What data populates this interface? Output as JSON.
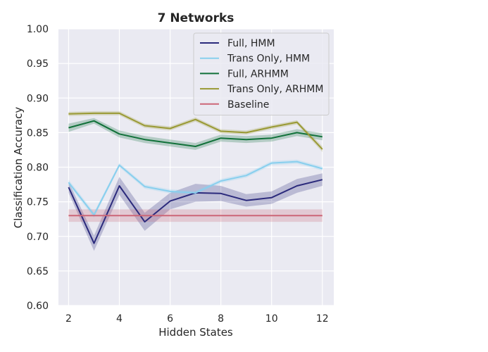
{
  "chart_data": {
    "type": "line",
    "title": "7 Networks",
    "xlabel": "Hidden States",
    "ylabel": "Classification Accuracy",
    "xlim": [
      1.6,
      12.45
    ],
    "ylim": [
      0.6,
      1.0
    ],
    "xticks": [
      2,
      4,
      6,
      8,
      10,
      12
    ],
    "yticks": [
      0.6,
      0.65,
      0.7,
      0.75,
      0.8,
      0.85,
      0.9,
      0.95,
      1.0
    ],
    "ytick_labels": [
      "0.60",
      "0.65",
      "0.70",
      "0.75",
      "0.80",
      "0.85",
      "0.90",
      "0.95",
      "1.00"
    ],
    "grid": true,
    "legend_position": "top-right",
    "x": [
      2,
      3,
      4,
      5,
      6,
      7,
      8,
      9,
      10,
      11,
      12
    ],
    "series": [
      {
        "name": "Full, HMM",
        "color": "#2b2a7c",
        "values": [
          0.771,
          0.69,
          0.773,
          0.721,
          0.751,
          0.763,
          0.762,
          0.752,
          0.756,
          0.773,
          0.782
        ],
        "ci_half_width": [
          0.008,
          0.011,
          0.013,
          0.013,
          0.012,
          0.013,
          0.011,
          0.009,
          0.009,
          0.01,
          0.009
        ]
      },
      {
        "name": "Trans Only, HMM",
        "color": "#88cfee",
        "values": [
          0.778,
          0.731,
          0.803,
          0.772,
          0.765,
          0.763,
          0.78,
          0.788,
          0.806,
          0.808,
          0.798
        ],
        "ci_half_width": [
          0.004,
          0.004,
          0.003,
          0.003,
          0.003,
          0.003,
          0.003,
          0.003,
          0.003,
          0.003,
          0.003
        ]
      },
      {
        "name": "Full, ARHMM",
        "color": "#11713a",
        "values": [
          0.857,
          0.867,
          0.848,
          0.84,
          0.835,
          0.83,
          0.842,
          0.84,
          0.842,
          0.85,
          0.844
        ],
        "ci_half_width": [
          0.006,
          0.004,
          0.005,
          0.005,
          0.005,
          0.005,
          0.005,
          0.005,
          0.005,
          0.005,
          0.005
        ]
      },
      {
        "name": "Trans Only, ARHMM",
        "color": "#999933",
        "values": [
          0.877,
          0.878,
          0.878,
          0.86,
          0.856,
          0.869,
          0.852,
          0.85,
          0.858,
          0.865,
          0.826
        ],
        "ci_half_width": [
          0.003,
          0.003,
          0.003,
          0.003,
          0.003,
          0.003,
          0.003,
          0.003,
          0.003,
          0.003,
          0.004
        ]
      },
      {
        "name": "Baseline",
        "color": "#cc6677",
        "values": [
          0.73,
          0.73,
          0.73,
          0.73,
          0.73,
          0.73,
          0.73,
          0.73,
          0.73,
          0.73,
          0.73
        ],
        "ci_half_width": [
          0.009,
          0.009,
          0.009,
          0.009,
          0.009,
          0.009,
          0.009,
          0.009,
          0.009,
          0.009,
          0.009
        ]
      }
    ]
  }
}
